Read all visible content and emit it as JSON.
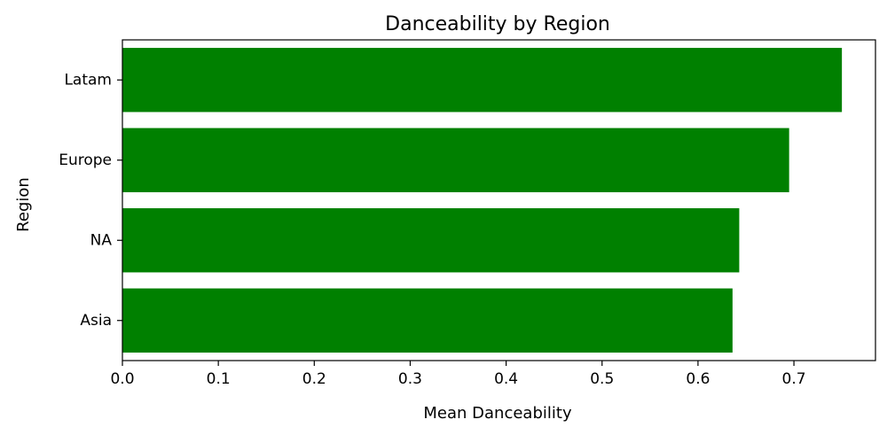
{
  "chart_data": {
    "type": "bar",
    "orientation": "horizontal",
    "title": "Danceability by Region",
    "xlabel": "Mean Danceability",
    "ylabel": "Region",
    "categories": [
      "Latam",
      "Europe",
      "NA",
      "Asia"
    ],
    "values": [
      0.75,
      0.695,
      0.643,
      0.636
    ],
    "xlim": [
      0,
      0.785
    ],
    "xticks": [
      "0.0",
      "0.1",
      "0.2",
      "0.3",
      "0.4",
      "0.5",
      "0.6",
      "0.7"
    ],
    "xtick_values": [
      0,
      0.1,
      0.2,
      0.3,
      0.4,
      0.5,
      0.6,
      0.7
    ],
    "bar_color": "#008000",
    "grid": false,
    "legend": "none"
  }
}
